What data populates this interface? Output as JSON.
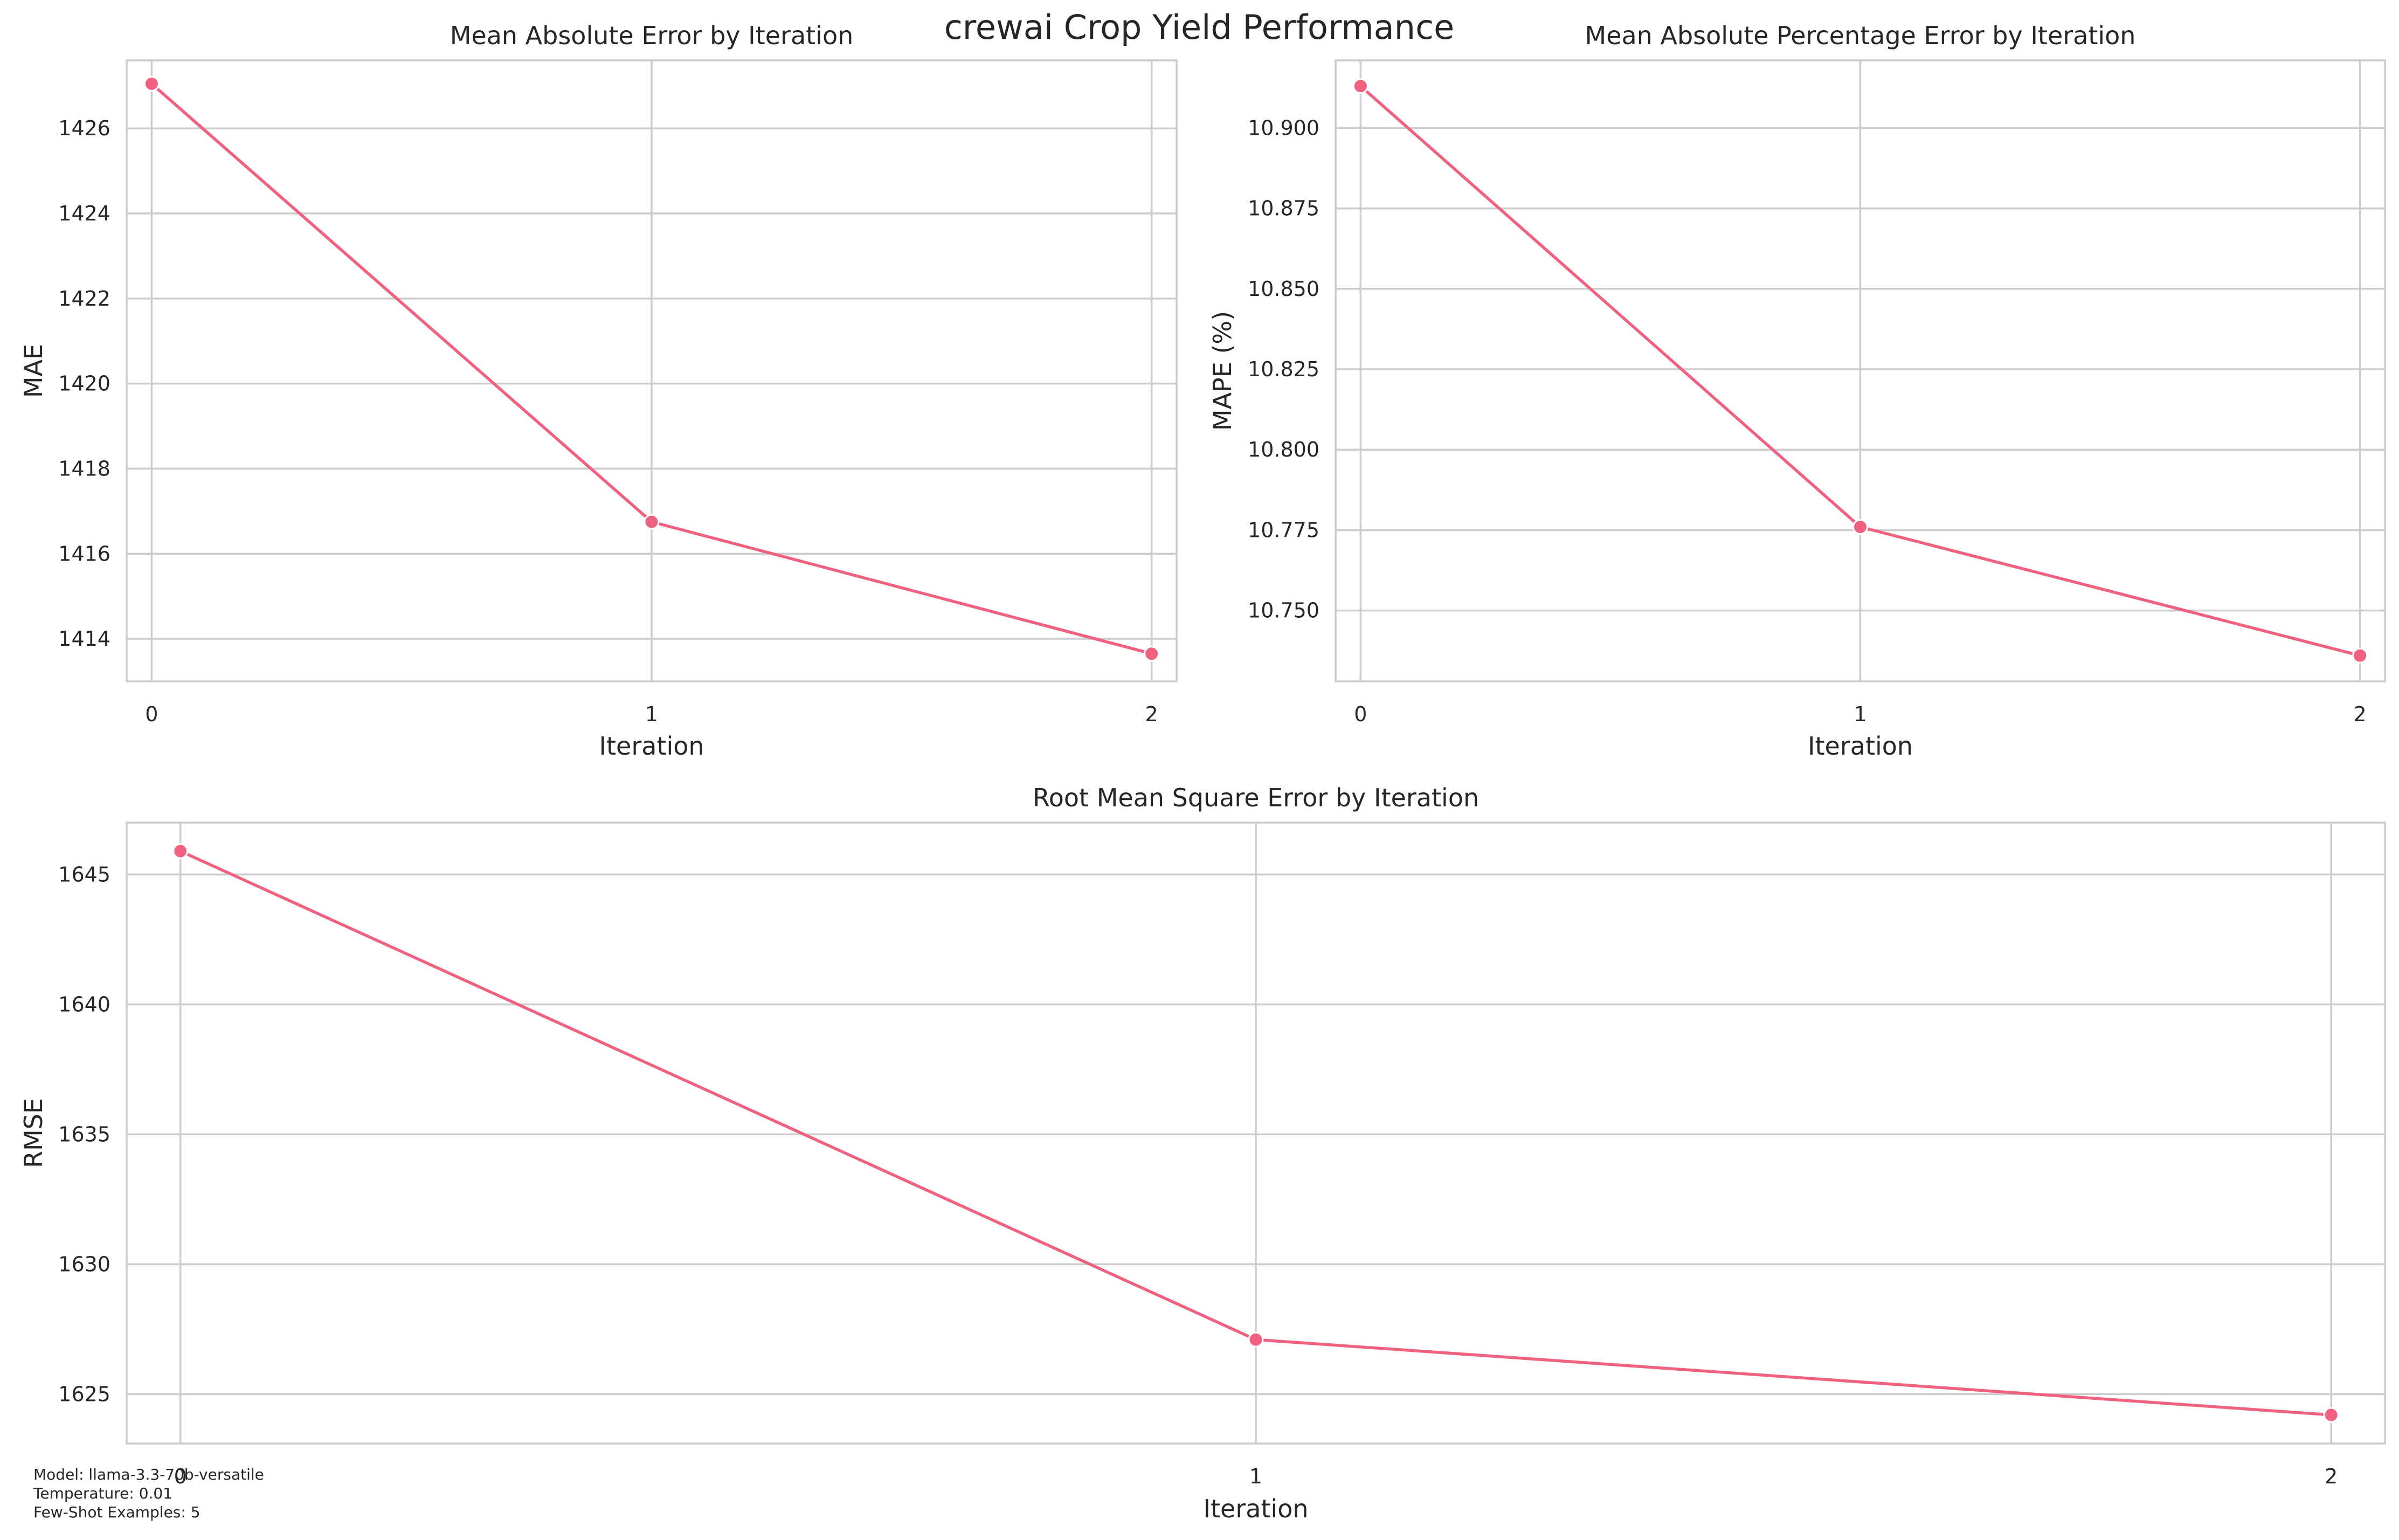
{
  "figure": {
    "title": "crewai Crop Yield Performance",
    "footnote": [
      "Model: llama-3.3-70b-versatile",
      "Temperature: 0.01",
      "Few-Shot Examples: 5"
    ],
    "line_color": "#f0607f"
  },
  "chart_data": [
    {
      "id": "mae",
      "type": "line",
      "title": "Mean Absolute Error by Iteration",
      "xlabel": "Iteration",
      "ylabel": "MAE",
      "x": [
        0,
        1,
        2
      ],
      "y": [
        1427.05,
        1416.75,
        1413.65
      ],
      "xlim": [
        -0.05,
        2.05
      ],
      "ylim": [
        1413.0,
        1427.6
      ],
      "xticks": [
        0,
        1,
        2
      ],
      "yticks": [
        1414,
        1416,
        1418,
        1420,
        1422,
        1424,
        1426
      ],
      "ytick_decimals": 0,
      "grid": true
    },
    {
      "id": "mape",
      "type": "line",
      "title": "Mean Absolute Percentage Error by Iteration",
      "xlabel": "Iteration",
      "ylabel": "MAPE (%)",
      "x": [
        0,
        1,
        2
      ],
      "y": [
        10.913,
        10.776,
        10.736
      ],
      "xlim": [
        -0.05,
        2.05
      ],
      "ylim": [
        10.728,
        10.921
      ],
      "xticks": [
        0,
        1,
        2
      ],
      "yticks": [
        10.75,
        10.775,
        10.8,
        10.825,
        10.85,
        10.875,
        10.9
      ],
      "ytick_decimals": 3,
      "grid": true
    },
    {
      "id": "rmse",
      "type": "line",
      "title": "Root Mean Square Error by Iteration",
      "xlabel": "Iteration",
      "ylabel": "RMSE",
      "x": [
        0,
        1,
        2
      ],
      "y": [
        1645.9,
        1627.1,
        1624.2
      ],
      "xlim": [
        -0.05,
        2.05
      ],
      "ylim": [
        1623.1,
        1647.0
      ],
      "xticks": [
        0,
        1,
        2
      ],
      "yticks": [
        1625,
        1630,
        1635,
        1640,
        1645
      ],
      "ytick_decimals": 0,
      "grid": true
    }
  ]
}
